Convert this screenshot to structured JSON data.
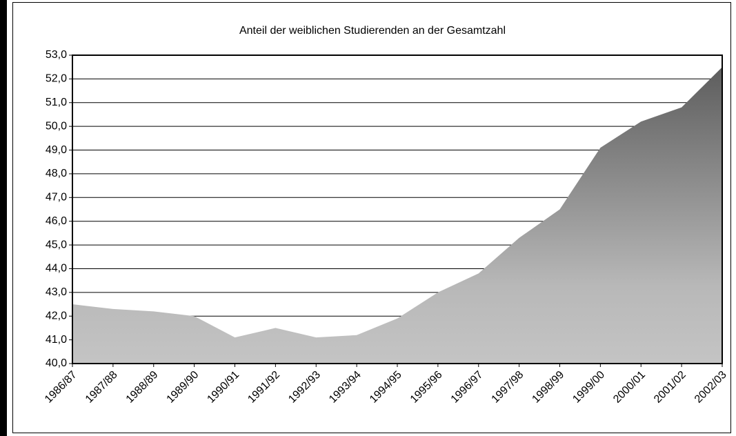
{
  "chart_data": {
    "type": "area",
    "title": "Anteil der weiblichen Studierenden an der Gesamtzahl",
    "categories": [
      "1986/87",
      "1987/88",
      "1988/89",
      "1989/90",
      "1990/91",
      "1991/92",
      "1992/93",
      "1993/94",
      "1994/95",
      "1995/96",
      "1996/97",
      "1997/98",
      "1998/99",
      "1999/00",
      "2000/01",
      "2001/02",
      "2002/03"
    ],
    "values": [
      42.5,
      42.3,
      42.2,
      42.0,
      41.1,
      41.5,
      41.1,
      41.2,
      41.9,
      43.0,
      43.8,
      45.3,
      46.5,
      49.1,
      50.2,
      50.8,
      52.5
    ],
    "color": "#a0a0a0",
    "ylim": [
      40,
      53
    ],
    "yticks": [
      {
        "value": 40,
        "label": "40,0"
      },
      {
        "value": 41,
        "label": "41,0"
      },
      {
        "value": 42,
        "label": "42,0"
      },
      {
        "value": 43,
        "label": "43,0"
      },
      {
        "value": 44,
        "label": "44,0"
      },
      {
        "value": 45,
        "label": "45,0"
      },
      {
        "value": 46,
        "label": "46,0"
      },
      {
        "value": 47,
        "label": "47,0"
      },
      {
        "value": 48,
        "label": "48,0"
      },
      {
        "value": 49,
        "label": "49,0"
      },
      {
        "value": 50,
        "label": "50,0"
      },
      {
        "value": 51,
        "label": "51,0"
      },
      {
        "value": 52,
        "label": "52,0"
      },
      {
        "value": 53,
        "label": "53,0"
      }
    ],
    "grid": true
  }
}
